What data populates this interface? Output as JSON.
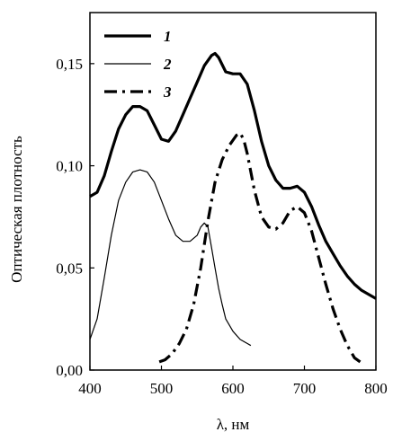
{
  "chart_data": {
    "type": "line",
    "xlabel": "λ, нм",
    "ylabel": "Оптическая плотность",
    "xlim": [
      400,
      800
    ],
    "ylim": [
      0,
      0.175
    ],
    "xticks": [
      400,
      500,
      600,
      700,
      800
    ],
    "xtick_labels": [
      "400",
      "500",
      "600",
      "700",
      "800"
    ],
    "yticks": [
      0,
      0.05,
      0.1,
      0.15
    ],
    "ytick_labels": [
      "0,00",
      "0,05",
      "0,10",
      "0,15"
    ],
    "grid": false,
    "legend_position": "top-left",
    "series": [
      {
        "name": "1",
        "style": "thick-solid",
        "color": "#000000",
        "x": [
          400,
          410,
          420,
          430,
          440,
          450,
          460,
          470,
          480,
          490,
          500,
          510,
          520,
          530,
          540,
          550,
          560,
          570,
          575,
          580,
          590,
          600,
          610,
          620,
          630,
          640,
          650,
          660,
          670,
          680,
          690,
          700,
          710,
          720,
          730,
          740,
          750,
          760,
          770,
          780,
          790,
          800
        ],
        "y": [
          0.085,
          0.087,
          0.095,
          0.107,
          0.118,
          0.125,
          0.129,
          0.129,
          0.127,
          0.12,
          0.113,
          0.112,
          0.117,
          0.125,
          0.133,
          0.141,
          0.149,
          0.154,
          0.155,
          0.153,
          0.146,
          0.145,
          0.145,
          0.14,
          0.127,
          0.112,
          0.1,
          0.093,
          0.089,
          0.089,
          0.09,
          0.087,
          0.08,
          0.071,
          0.063,
          0.057,
          0.051,
          0.046,
          0.042,
          0.039,
          0.037,
          0.035
        ]
      },
      {
        "name": "2",
        "style": "thin-solid",
        "color": "#000000",
        "x": [
          400,
          410,
          420,
          430,
          440,
          450,
          460,
          470,
          480,
          490,
          500,
          510,
          520,
          530,
          540,
          550,
          555,
          560,
          565,
          570,
          575,
          580,
          585,
          590,
          600,
          610,
          620,
          625
        ],
        "y": [
          0.015,
          0.025,
          0.045,
          0.066,
          0.083,
          0.092,
          0.097,
          0.098,
          0.097,
          0.092,
          0.083,
          0.074,
          0.066,
          0.063,
          0.063,
          0.066,
          0.07,
          0.072,
          0.07,
          0.06,
          0.05,
          0.04,
          0.032,
          0.025,
          0.019,
          0.015,
          0.013,
          0.012
        ]
      },
      {
        "name": "3",
        "style": "thick-dash-dot",
        "color": "#000000",
        "x": [
          497,
          505,
          515,
          525,
          535,
          545,
          555,
          565,
          575,
          585,
          595,
          605,
          610,
          615,
          620,
          630,
          640,
          650,
          660,
          670,
          680,
          690,
          700,
          710,
          720,
          730,
          740,
          750,
          760,
          770,
          778
        ],
        "y": [
          0.004,
          0.005,
          0.008,
          0.013,
          0.02,
          0.032,
          0.05,
          0.073,
          0.092,
          0.103,
          0.11,
          0.115,
          0.116,
          0.113,
          0.106,
          0.088,
          0.075,
          0.07,
          0.069,
          0.072,
          0.078,
          0.08,
          0.077,
          0.068,
          0.055,
          0.042,
          0.03,
          0.02,
          0.012,
          0.006,
          0.004
        ]
      }
    ]
  }
}
